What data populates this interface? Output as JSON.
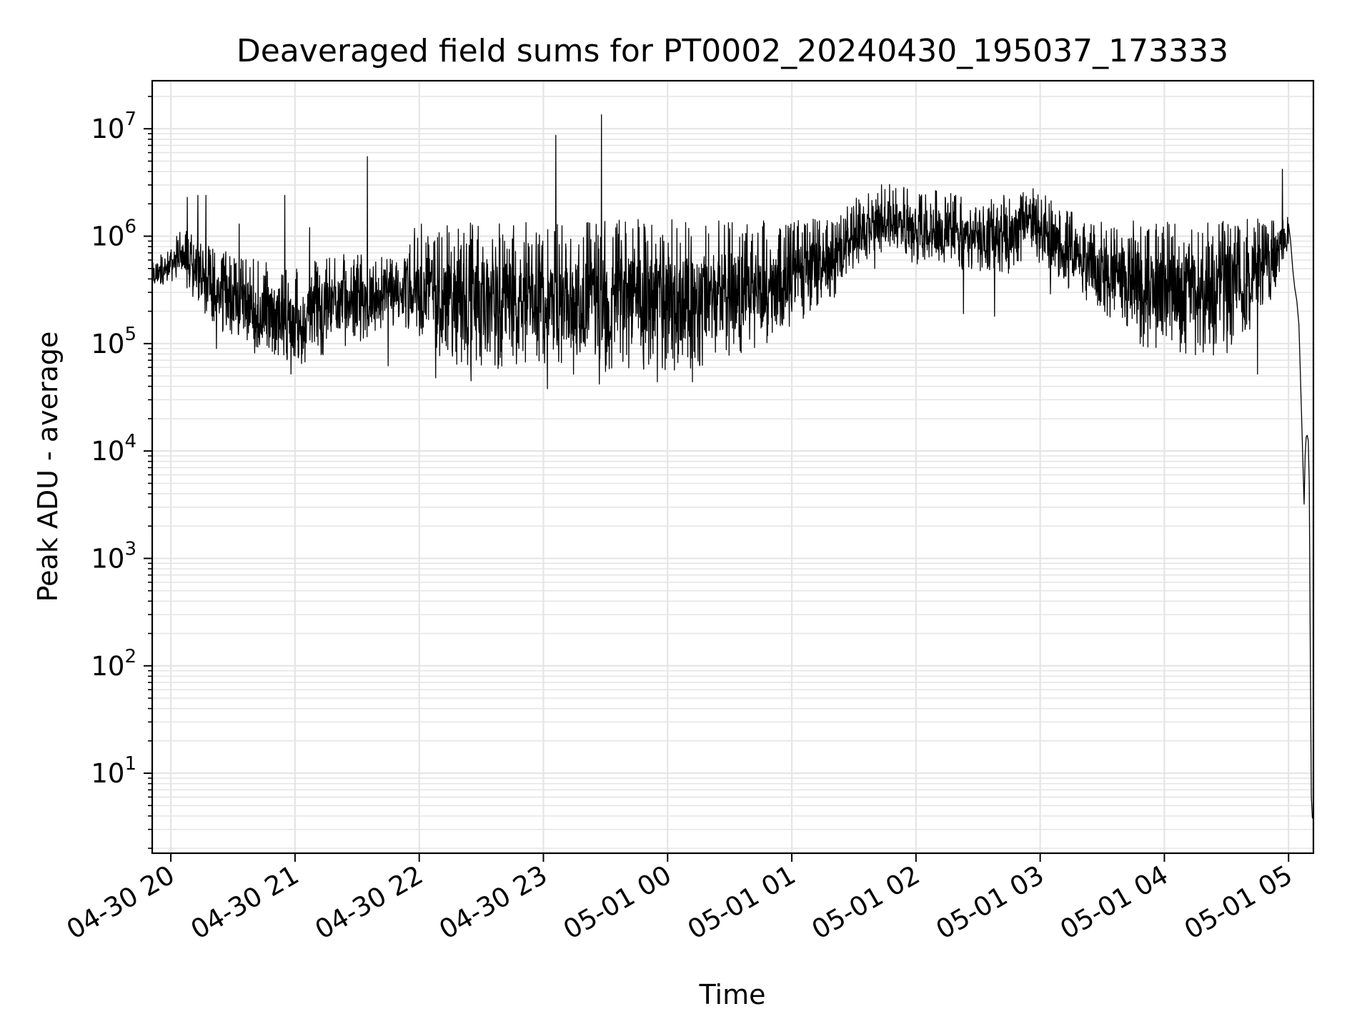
{
  "chart_data": {
    "type": "line",
    "title": "Deaveraged field sums for PT0002_20240430_195037_173333",
    "xlabel": "Time",
    "ylabel": "Peak ADU - average",
    "y_scale": "log",
    "ylim": [
      1.8,
      28000000
    ],
    "xlim": [
      "2024-04-30 19:51",
      "2024-05-01 05:12"
    ],
    "grid": true,
    "grid_color": "#e5e5e5",
    "line_color": "#000000",
    "x_ticks": [
      {
        "label": "04-30 20",
        "t": "2024-04-30 20:00"
      },
      {
        "label": "04-30 21",
        "t": "2024-04-30 21:00"
      },
      {
        "label": "04-30 22",
        "t": "2024-04-30 22:00"
      },
      {
        "label": "04-30 23",
        "t": "2024-04-30 23:00"
      },
      {
        "label": "05-01 00",
        "t": "2024-05-01 00:00"
      },
      {
        "label": "05-01 01",
        "t": "2024-05-01 01:00"
      },
      {
        "label": "05-01 02",
        "t": "2024-05-01 02:00"
      },
      {
        "label": "05-01 03",
        "t": "2024-05-01 03:00"
      },
      {
        "label": "05-01 04",
        "t": "2024-05-01 04:00"
      },
      {
        "label": "05-01 05",
        "t": "2024-05-01 05:00"
      }
    ],
    "y_ticks": [
      {
        "base": "10",
        "exp": "1",
        "value": 10
      },
      {
        "base": "10",
        "exp": "2",
        "value": 100
      },
      {
        "base": "10",
        "exp": "3",
        "value": 1000
      },
      {
        "base": "10",
        "exp": "4",
        "value": 10000
      },
      {
        "base": "10",
        "exp": "5",
        "value": 100000
      },
      {
        "base": "10",
        "exp": "6",
        "value": 1000000
      },
      {
        "base": "10",
        "exp": "7",
        "value": 10000000
      }
    ],
    "series": [
      {
        "envelope": [
          {
            "t": "2024-04-30 19:51",
            "lo": 300000,
            "hi": 650000
          },
          {
            "t": "2024-04-30 20:00",
            "lo": 380000,
            "hi": 800000
          },
          {
            "t": "2024-04-30 20:05",
            "lo": 400000,
            "hi": 1200000
          },
          {
            "t": "2024-04-30 20:15",
            "lo": 200000,
            "hi": 900000
          },
          {
            "t": "2024-04-30 20:30",
            "lo": 85000,
            "hi": 700000
          },
          {
            "t": "2024-04-30 20:45",
            "lo": 80000,
            "hi": 600000
          },
          {
            "t": "2024-04-30 21:00",
            "lo": 60000,
            "hi": 500000
          },
          {
            "t": "2024-04-30 21:15",
            "lo": 80000,
            "hi": 650000
          },
          {
            "t": "2024-04-30 21:30",
            "lo": 100000,
            "hi": 700000
          },
          {
            "t": "2024-04-30 21:50",
            "lo": 150000,
            "hi": 600000
          },
          {
            "t": "2024-04-30 21:58",
            "lo": 80000,
            "hi": 1300000
          },
          {
            "t": "2024-04-30 22:15",
            "lo": 60000,
            "hi": 1300000
          },
          {
            "t": "2024-04-30 22:30",
            "lo": 60000,
            "hi": 1350000
          },
          {
            "t": "2024-04-30 22:50",
            "lo": 55000,
            "hi": 1350000
          },
          {
            "t": "2024-04-30 23:10",
            "lo": 50000,
            "hi": 1400000
          },
          {
            "t": "2024-04-30 23:30",
            "lo": 55000,
            "hi": 1450000
          },
          {
            "t": "2024-04-30 23:50",
            "lo": 55000,
            "hi": 1450000
          },
          {
            "t": "2024-05-01 00:10",
            "lo": 55000,
            "hi": 1450000
          },
          {
            "t": "2024-05-01 00:30",
            "lo": 75000,
            "hi": 1450000
          },
          {
            "t": "2024-05-01 00:50",
            "lo": 100000,
            "hi": 1500000
          },
          {
            "t": "2024-05-01 01:10",
            "lo": 200000,
            "hi": 1500000
          },
          {
            "t": "2024-05-01 01:20",
            "lo": 250000,
            "hi": 1400000
          },
          {
            "t": "2024-05-01 01:30",
            "lo": 500000,
            "hi": 2200000
          },
          {
            "t": "2024-05-01 01:45",
            "lo": 700000,
            "hi": 3200000
          },
          {
            "t": "2024-05-01 02:00",
            "lo": 550000,
            "hi": 2800000
          },
          {
            "t": "2024-05-01 02:15",
            "lo": 500000,
            "hi": 2700000
          },
          {
            "t": "2024-05-01 02:30",
            "lo": 450000,
            "hi": 2000000
          },
          {
            "t": "2024-05-01 02:45",
            "lo": 450000,
            "hi": 2500000
          },
          {
            "t": "2024-05-01 02:55",
            "lo": 700000,
            "hi": 3300000
          },
          {
            "t": "2024-05-01 03:10",
            "lo": 350000,
            "hi": 1800000
          },
          {
            "t": "2024-05-01 03:30",
            "lo": 200000,
            "hi": 1400000
          },
          {
            "t": "2024-05-01 03:50",
            "lo": 90000,
            "hi": 1400000
          },
          {
            "t": "2024-05-01 04:10",
            "lo": 80000,
            "hi": 1400000
          },
          {
            "t": "2024-05-01 04:30",
            "lo": 75000,
            "hi": 1400000
          },
          {
            "t": "2024-05-01 04:50",
            "lo": 200000,
            "hi": 1500000
          },
          {
            "t": "2024-05-01 05:00",
            "lo": 800000,
            "hi": 1600000
          }
        ],
        "spikes": [
          {
            "t": "2024-04-30 20:08",
            "v": 2300000
          },
          {
            "t": "2024-04-30 20:13",
            "v": 2400000
          },
          {
            "t": "2024-04-30 20:17",
            "v": 2400000
          },
          {
            "t": "2024-04-30 20:33",
            "v": 1300000
          },
          {
            "t": "2024-04-30 20:55",
            "v": 2400000
          },
          {
            "t": "2024-04-30 21:07",
            "v": 1200000
          },
          {
            "t": "2024-04-30 21:35",
            "v": 5500000
          },
          {
            "t": "2024-04-30 23:06",
            "v": 8700000
          },
          {
            "t": "2024-04-30 23:28",
            "v": 13500000
          },
          {
            "t": "2024-05-01 04:57",
            "v": 4200000
          }
        ],
        "dips": [
          {
            "t": "2024-04-30 20:22",
            "v": 90000
          },
          {
            "t": "2024-04-30 20:58",
            "v": 52000
          },
          {
            "t": "2024-04-30 21:45",
            "v": 62000
          },
          {
            "t": "2024-04-30 22:08",
            "v": 48000
          },
          {
            "t": "2024-04-30 22:25",
            "v": 45000
          },
          {
            "t": "2024-04-30 23:02",
            "v": 38000
          },
          {
            "t": "2024-04-30 23:27",
            "v": 42000
          },
          {
            "t": "2024-04-30 23:55",
            "v": 44000
          },
          {
            "t": "2024-05-01 00:12",
            "v": 44000
          },
          {
            "t": "2024-05-01 01:40",
            "v": 500000
          },
          {
            "t": "2024-05-01 02:23",
            "v": 190000
          },
          {
            "t": "2024-05-01 02:38",
            "v": 180000
          },
          {
            "t": "2024-05-01 03:05",
            "v": 290000
          },
          {
            "t": "2024-05-01 04:45",
            "v": 52000
          }
        ],
        "tail": [
          {
            "t": "2024-05-01 05:00",
            "v": 1300000
          },
          {
            "t": "2024-05-01 05:01",
            "v": 900000
          },
          {
            "t": "2024-05-01 05:02",
            "v": 500000
          },
          {
            "t": "2024-05-01 05:03",
            "v": 330000
          },
          {
            "t": "2024-05-01 05:04",
            "v": 250000
          },
          {
            "t": "2024-05-01 05:05",
            "v": 150000
          },
          {
            "t": "2024-05-01 05:05:30",
            "v": 70000
          },
          {
            "t": "2024-05-01 05:06:30",
            "v": 15000
          },
          {
            "t": "2024-05-01 05:07:30",
            "v": 3200
          },
          {
            "t": "2024-05-01 05:08",
            "v": 9000
          },
          {
            "t": "2024-05-01 05:08:30",
            "v": 13500
          },
          {
            "t": "2024-05-01 05:09",
            "v": 14000
          },
          {
            "t": "2024-05-01 05:09:30",
            "v": 12500
          },
          {
            "t": "2024-05-01 05:10",
            "v": 5000
          },
          {
            "t": "2024-05-01 05:10:30",
            "v": 120
          },
          {
            "t": "2024-05-01 05:11",
            "v": 6
          },
          {
            "t": "2024-05-01 05:11:30",
            "v": 3.8
          }
        ]
      }
    ]
  }
}
